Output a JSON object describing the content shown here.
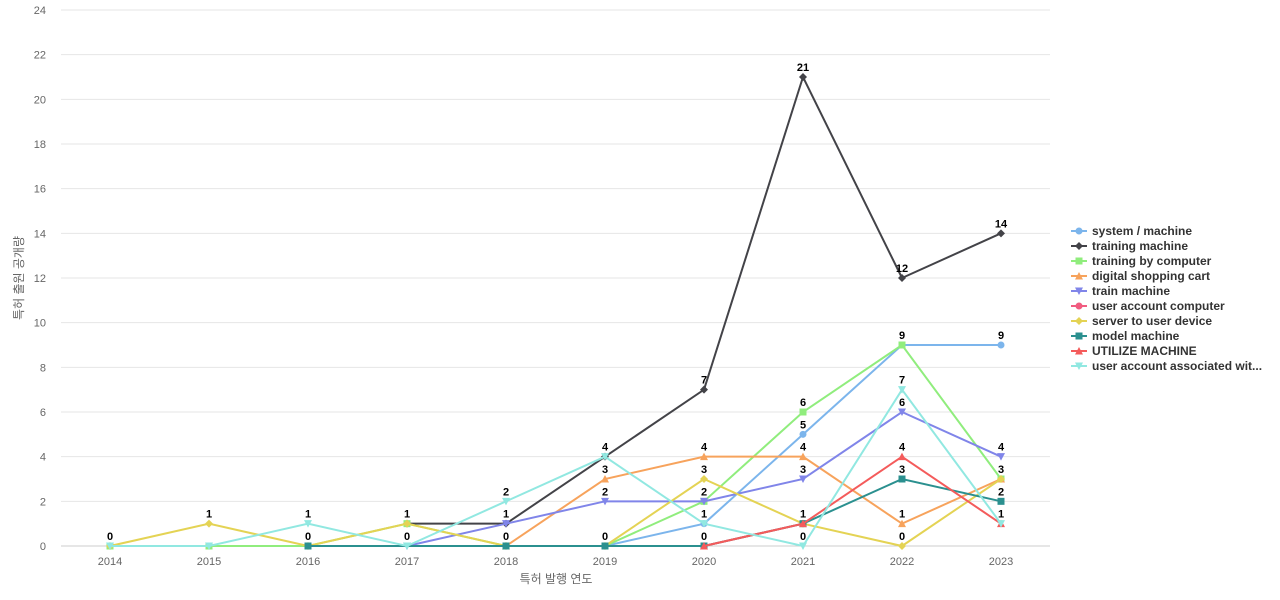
{
  "chart_data": {
    "type": "line",
    "title": "",
    "xlabel": "특허 발행 연도",
    "ylabel": "특허 출원 공개량",
    "x": [
      2014,
      2015,
      2016,
      2017,
      2018,
      2019,
      2020,
      2021,
      2022,
      2023
    ],
    "ylim": [
      0,
      24
    ],
    "yticks": [
      0,
      2,
      4,
      6,
      8,
      10,
      12,
      14,
      16,
      18,
      20,
      22,
      24
    ],
    "grid": true,
    "legend_position": "right",
    "series": [
      {
        "name": "system / machine",
        "color": "#7cb5ec",
        "marker": "circle",
        "values": [
          null,
          null,
          null,
          null,
          null,
          0,
          1,
          5,
          9,
          9
        ],
        "labels": [
          null,
          null,
          null,
          null,
          null,
          null,
          null,
          5,
          9,
          9
        ]
      },
      {
        "name": "training machine",
        "color": "#434348",
        "marker": "diamond",
        "values": [
          null,
          null,
          null,
          1,
          1,
          4,
          7,
          21,
          12,
          14
        ],
        "labels": [
          null,
          null,
          null,
          null,
          null,
          null,
          7,
          21,
          12,
          14
        ]
      },
      {
        "name": "training by computer",
        "color": "#90ed7d",
        "marker": "square",
        "values": [
          0,
          0,
          0,
          1,
          0,
          0,
          2,
          6,
          9,
          3
        ],
        "labels": [
          null,
          null,
          null,
          null,
          null,
          null,
          null,
          6,
          null,
          null
        ]
      },
      {
        "name": "digital shopping cart",
        "color": "#f7a35c",
        "marker": "triangle",
        "values": [
          null,
          null,
          null,
          null,
          0,
          3,
          4,
          4,
          1,
          3
        ],
        "labels": [
          null,
          null,
          null,
          null,
          null,
          3,
          4,
          4,
          1,
          3
        ]
      },
      {
        "name": "train machine",
        "color": "#8085e9",
        "marker": "triangle-down",
        "values": [
          null,
          null,
          null,
          0,
          1,
          2,
          2,
          3,
          6,
          4
        ],
        "labels": [
          null,
          null,
          null,
          null,
          1,
          2,
          2,
          3,
          6,
          4
        ]
      },
      {
        "name": "user account computer",
        "color": "#f15c80",
        "marker": "circle",
        "values": [
          null,
          null,
          null,
          null,
          null,
          null,
          0,
          1,
          null,
          null
        ],
        "labels": [
          null,
          null,
          null,
          null,
          null,
          null,
          null,
          null,
          null,
          null
        ]
      },
      {
        "name": "server to user device",
        "color": "#e4d354",
        "marker": "diamond",
        "values": [
          0,
          1,
          0,
          1,
          0,
          0,
          3,
          1,
          0,
          3
        ],
        "labels": [
          0,
          1,
          0,
          1,
          0,
          0,
          3,
          null,
          0,
          null
        ]
      },
      {
        "name": "model machine",
        "color": "#2b908f",
        "marker": "square",
        "values": [
          null,
          null,
          0,
          null,
          0,
          0,
          0,
          1,
          3,
          2
        ],
        "labels": [
          null,
          null,
          null,
          null,
          null,
          null,
          null,
          null,
          3,
          2
        ]
      },
      {
        "name": "UTILIZE MACHINE",
        "color": "#f45b5b",
        "marker": "triangle",
        "values": [
          null,
          null,
          null,
          null,
          null,
          null,
          0,
          1,
          4,
          1
        ],
        "labels": [
          null,
          null,
          null,
          null,
          null,
          null,
          0,
          1,
          4,
          1
        ]
      },
      {
        "name": "user account associated wit...",
        "color": "#91e8e1",
        "marker": "triangle-down",
        "values": [
          0,
          0,
          1,
          0,
          2,
          4,
          1,
          0,
          7,
          1
        ],
        "labels": [
          null,
          null,
          1,
          0,
          2,
          4,
          1,
          0,
          7,
          null
        ]
      }
    ]
  }
}
